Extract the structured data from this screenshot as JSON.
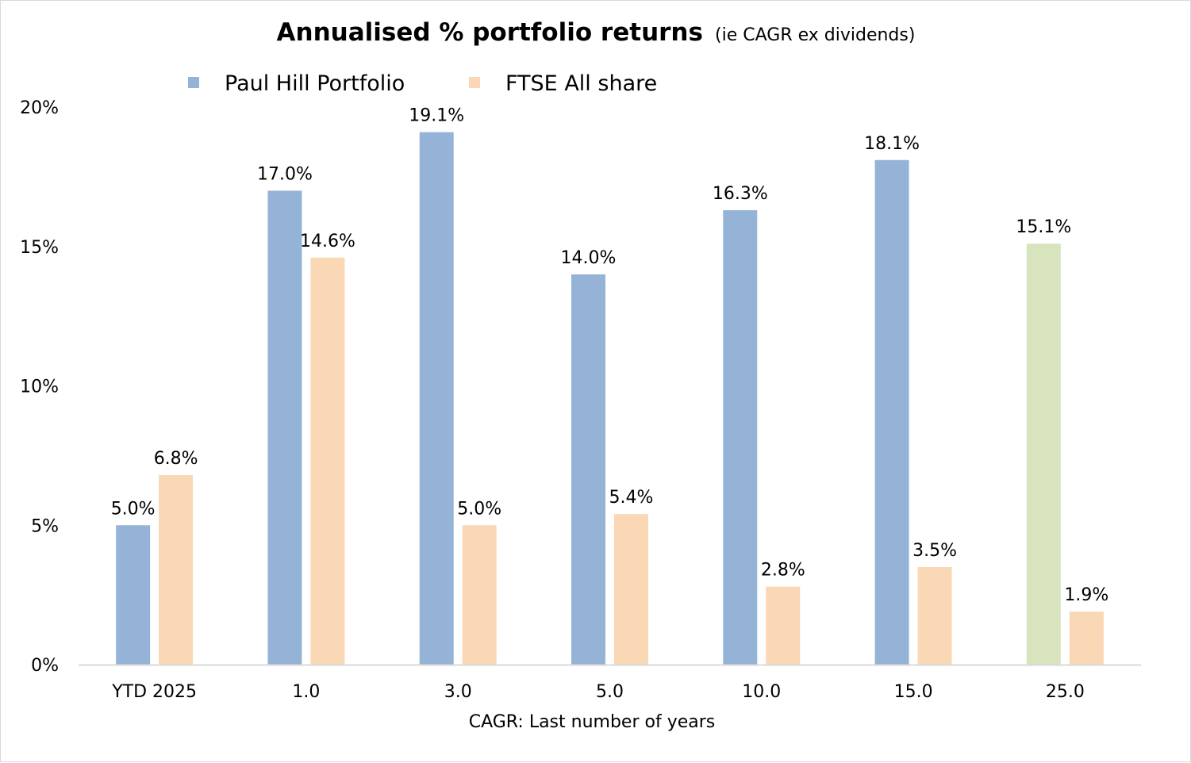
{
  "chart_data": {
    "type": "bar",
    "title": "Annualised % portfolio returns",
    "subtitle": "(ie CAGR ex dividends)",
    "xlabel": "CAGR: Last number of years",
    "ylabel": "",
    "categories": [
      "YTD 2025",
      "1.0",
      "3.0",
      "5.0",
      "10.0",
      "15.0",
      "25.0"
    ],
    "series": [
      {
        "name": "Paul Hill Portfolio",
        "color": "#95b3d7",
        "point_colors": [
          "#95b3d7",
          "#95b3d7",
          "#95b3d7",
          "#95b3d7",
          "#95b3d7",
          "#95b3d7",
          "#d7e4bd"
        ],
        "values": [
          5.0,
          17.0,
          19.1,
          14.0,
          16.3,
          18.1,
          15.1
        ],
        "labels": [
          "5.0%",
          "17.0%",
          "19.1%",
          "14.0%",
          "16.3%",
          "18.1%",
          "15.1%"
        ]
      },
      {
        "name": "FTSE All share",
        "color": "#fad7b5",
        "point_colors": [
          "#fad7b5",
          "#fad7b5",
          "#fad7b5",
          "#fad7b5",
          "#fad7b5",
          "#fad7b5",
          "#fad7b5"
        ],
        "values": [
          6.8,
          14.6,
          5.0,
          5.4,
          2.8,
          3.5,
          1.9
        ],
        "labels": [
          "6.8%",
          "14.6%",
          "5.0%",
          "5.4%",
          "2.8%",
          "3.5%",
          "1.9%"
        ]
      }
    ],
    "ylim": [
      0,
      20
    ],
    "yticks": [
      0,
      5,
      10,
      15,
      20
    ],
    "ytick_labels": [
      "0%",
      "5%",
      "10%",
      "15%",
      "20%"
    ],
    "grid": false,
    "legend_position": "top-center",
    "axis_color": "#d9d9d9"
  }
}
